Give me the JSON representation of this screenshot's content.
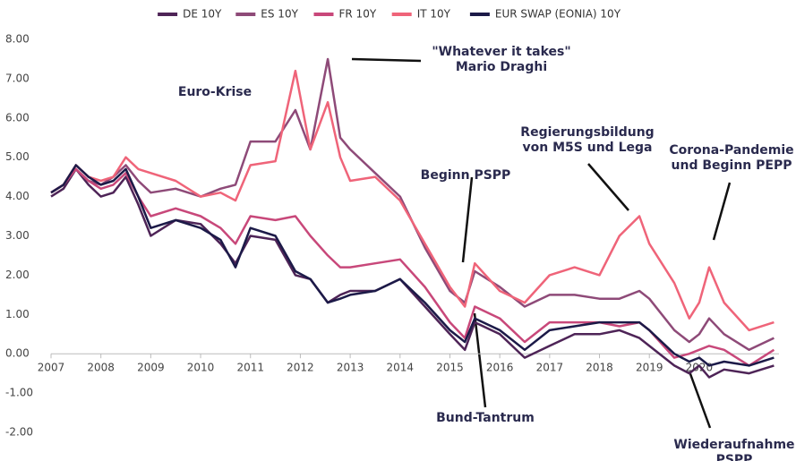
{
  "chart_data": {
    "type": "line",
    "x": [
      2007,
      2007.25,
      2007.5,
      2007.75,
      2008,
      2008.25,
      2008.5,
      2008.75,
      2009,
      2009.5,
      2010,
      2010.4,
      2010.7,
      2011,
      2011.5,
      2011.9,
      2012.2,
      2012.55,
      2012.8,
      2013,
      2013.5,
      2014,
      2014.5,
      2015,
      2015.3,
      2015.5,
      2016,
      2016.5,
      2017,
      2017.5,
      2018,
      2018.4,
      2018.8,
      2019,
      2019.5,
      2019.8,
      2020,
      2020.2,
      2020.5,
      2021,
      2021.5
    ],
    "series": [
      {
        "name": "DE 10Y",
        "color": "#4e2457",
        "values": [
          4.0,
          4.2,
          4.7,
          4.3,
          4.0,
          4.1,
          4.5,
          3.8,
          3.0,
          3.4,
          3.3,
          2.8,
          2.3,
          3.0,
          2.9,
          2.0,
          1.9,
          1.3,
          1.5,
          1.6,
          1.6,
          1.9,
          1.2,
          0.5,
          0.1,
          0.8,
          0.5,
          -0.1,
          0.2,
          0.5,
          0.5,
          0.6,
          0.4,
          0.2,
          -0.3,
          -0.5,
          -0.3,
          -0.6,
          -0.4,
          -0.5,
          -0.3
        ]
      },
      {
        "name": "ES 10Y",
        "color": "#8e4a78",
        "values": [
          4.1,
          4.3,
          4.7,
          4.4,
          4.3,
          4.5,
          4.8,
          4.4,
          4.1,
          4.2,
          4.0,
          4.2,
          4.3,
          5.4,
          5.4,
          6.2,
          5.2,
          7.5,
          5.5,
          5.2,
          4.6,
          4.0,
          2.7,
          1.6,
          1.3,
          2.1,
          1.7,
          1.2,
          1.5,
          1.5,
          1.4,
          1.4,
          1.6,
          1.4,
          0.6,
          0.3,
          0.5,
          0.9,
          0.5,
          0.1,
          0.4
        ]
      },
      {
        "name": "FR 10Y",
        "color": "#c8487a",
        "values": [
          4.1,
          4.3,
          4.7,
          4.4,
          4.2,
          4.3,
          4.6,
          4.0,
          3.5,
          3.7,
          3.5,
          3.2,
          2.8,
          3.5,
          3.4,
          3.5,
          3.0,
          2.5,
          2.2,
          2.2,
          2.3,
          2.4,
          1.7,
          0.8,
          0.4,
          1.2,
          0.9,
          0.3,
          0.8,
          0.8,
          0.8,
          0.7,
          0.8,
          0.6,
          -0.1,
          0.0,
          0.1,
          0.2,
          0.1,
          -0.3,
          0.1
        ]
      },
      {
        "name": "IT 10Y",
        "color": "#ef6479",
        "values": [
          4.1,
          4.3,
          4.8,
          4.5,
          4.4,
          4.5,
          5.0,
          4.7,
          4.6,
          4.4,
          4.0,
          4.1,
          3.9,
          4.8,
          4.9,
          7.2,
          5.2,
          6.4,
          5.0,
          4.4,
          4.5,
          3.9,
          2.8,
          1.7,
          1.2,
          2.3,
          1.6,
          1.3,
          2.0,
          2.2,
          2.0,
          3.0,
          3.5,
          2.8,
          1.8,
          0.9,
          1.3,
          2.2,
          1.3,
          0.6,
          0.8
        ]
      },
      {
        "name": "EUR SWAP (EONIA) 10Y",
        "color": "#1c1a48",
        "values": [
          4.1,
          4.3,
          4.8,
          4.5,
          4.3,
          4.4,
          4.7,
          4.0,
          3.2,
          3.4,
          3.2,
          2.9,
          2.2,
          3.2,
          3.0,
          2.1,
          1.9,
          1.3,
          1.4,
          1.5,
          1.6,
          1.9,
          1.3,
          0.6,
          0.3,
          0.9,
          0.6,
          0.1,
          0.6,
          0.7,
          0.8,
          0.8,
          0.8,
          0.6,
          0.0,
          -0.2,
          -0.1,
          -0.3,
          -0.2,
          -0.3,
          -0.1
        ]
      }
    ],
    "xlim": [
      2007,
      2021.6
    ],
    "xticks": [
      2007,
      2008,
      2009,
      2010,
      2011,
      2012,
      2013,
      2014,
      2015,
      2016,
      2017,
      2018,
      2019,
      2020
    ],
    "ylim": [
      -2,
      8
    ],
    "yticks": [
      {
        "value": -2,
        "label": "-2.00"
      },
      {
        "value": -1,
        "label": "-1.00"
      },
      {
        "value": 0,
        "label": "0.00"
      },
      {
        "value": 1,
        "label": "1.00"
      },
      {
        "value": 2,
        "label": "2.00"
      },
      {
        "value": 3,
        "label": "3.00"
      },
      {
        "value": 4,
        "label": "4.00"
      },
      {
        "value": 5,
        "label": "5.00"
      },
      {
        "value": 6,
        "label": "6.00"
      },
      {
        "value": 7,
        "label": "7.00"
      },
      {
        "value": 8,
        "label": "8.00"
      }
    ],
    "legend": "top",
    "annotations": [
      {
        "lines": [
          "Euro-Krise"
        ]
      },
      {
        "lines": [
          "\"Whatever it takes\"",
          "Mario Draghi"
        ]
      },
      {
        "lines": [
          "Beginn PSPP"
        ]
      },
      {
        "lines": [
          "Regierungsbildung",
          "von M5S und Lega"
        ]
      },
      {
        "lines": [
          "Corona-Pandemie",
          "und Beginn PEPP"
        ]
      },
      {
        "lines": [
          "Bund-Tantrum"
        ]
      },
      {
        "lines": [
          "Wiederaufnahme",
          "PSPP"
        ]
      }
    ]
  }
}
